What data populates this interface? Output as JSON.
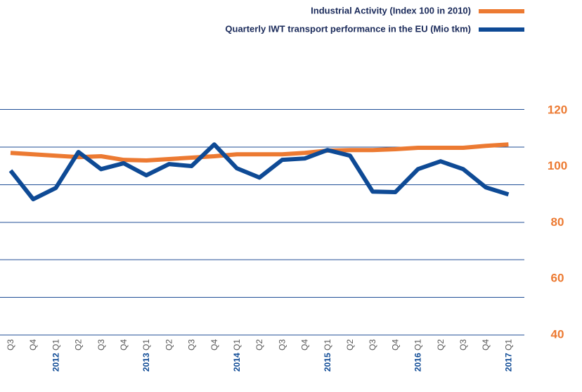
{
  "chart_data": {
    "type": "line",
    "categories": [
      "Q3",
      "Q4",
      "Q1",
      "Q2",
      "Q3",
      "Q4",
      "Q1",
      "Q2",
      "Q3",
      "Q4",
      "Q1",
      "Q2",
      "Q3",
      "Q4",
      "Q1",
      "Q2",
      "Q3",
      "Q4",
      "Q1",
      "Q2",
      "Q3",
      "Q4",
      "Q1"
    ],
    "category_years": [
      null,
      null,
      "2012",
      null,
      null,
      null,
      "2013",
      null,
      null,
      null,
      "2014",
      null,
      null,
      null,
      "2015",
      null,
      null,
      null,
      "2016",
      null,
      null,
      null,
      "2017"
    ],
    "series": [
      {
        "name": "Industrial Activity (Index 100 in 2010)",
        "color": "#ec7a32",
        "axis": "y2",
        "values": [
          104.9,
          104.4,
          103.9,
          103.4,
          103.7,
          102.4,
          102.2,
          102.7,
          103.2,
          103.7,
          104.4,
          104.4,
          104.4,
          104.9,
          105.7,
          105.9,
          105.9,
          106.2,
          106.7,
          106.7,
          106.7,
          107.4,
          107.9
        ]
      },
      {
        "name": "Quarterly IWT  transport performance in the EU (Mio tkm)",
        "color": "#0e4a95",
        "axis": "y2",
        "values": [
          98.6,
          88.4,
          92.4,
          105.2,
          99.1,
          101.2,
          96.9,
          100.9,
          100.2,
          107.9,
          99.4,
          96.1,
          102.4,
          102.9,
          105.9,
          103.9,
          91.1,
          90.9,
          99.1,
          101.9,
          99.1,
          92.6,
          90.1
        ]
      }
    ],
    "y2lim": [
      40,
      120
    ],
    "y2ticks": [
      120,
      100,
      80,
      60,
      40
    ]
  }
}
